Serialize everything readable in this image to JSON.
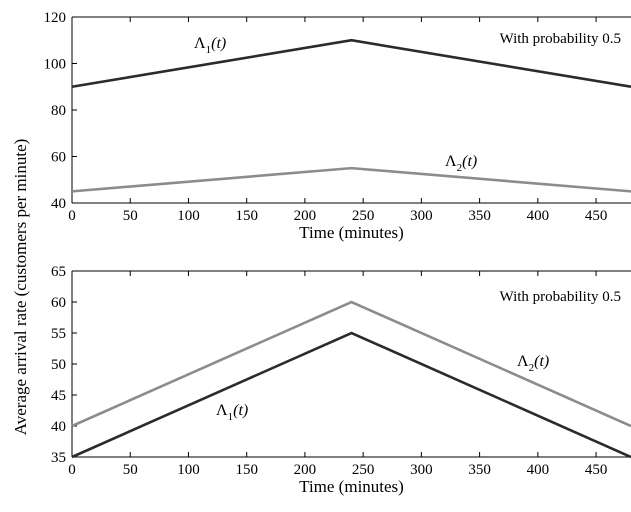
{
  "ylabel": "Average arrival rate (customers per minute)",
  "chart_data": [
    {
      "type": "line",
      "xlabel": "Time (minutes)",
      "annotation": "With probability 0.5",
      "xlim": [
        0,
        480
      ],
      "ylim": [
        40,
        120
      ],
      "xticks": [
        "0",
        "50",
        "100",
        "150",
        "200",
        "250",
        "300",
        "350",
        "400",
        "450"
      ],
      "yticks": [
        "40",
        "60",
        "80",
        "100",
        "120"
      ],
      "series": [
        {
          "name": "Λ1(t)",
          "label_main": "Λ",
          "label_sub": "1",
          "label_arg": "(t)",
          "color": "#2b2b2b",
          "x": [
            0,
            240,
            480
          ],
          "y": [
            90,
            110,
            90
          ]
        },
        {
          "name": "Λ2(t)",
          "label_main": "Λ",
          "label_sub": "2",
          "label_arg": "(t)",
          "color": "#8c8c8c",
          "x": [
            0,
            240,
            480
          ],
          "y": [
            45,
            55,
            45
          ]
        }
      ]
    },
    {
      "type": "line",
      "xlabel": "Time (minutes)",
      "annotation": "With probability 0.5",
      "xlim": [
        0,
        480
      ],
      "ylim": [
        35,
        65
      ],
      "xticks": [
        "0",
        "50",
        "100",
        "150",
        "200",
        "250",
        "300",
        "350",
        "400",
        "450"
      ],
      "yticks": [
        "35",
        "40",
        "45",
        "50",
        "55",
        "60",
        "65"
      ],
      "series": [
        {
          "name": "Λ1(t)",
          "label_main": "Λ",
          "label_sub": "1",
          "label_arg": "(t)",
          "color": "#2b2b2b",
          "x": [
            0,
            240,
            480
          ],
          "y": [
            35,
            55,
            35
          ]
        },
        {
          "name": "Λ2(t)",
          "label_main": "Λ",
          "label_sub": "2",
          "label_arg": "(t)",
          "color": "#8c8c8c",
          "x": [
            0,
            240,
            480
          ],
          "y": [
            40,
            60,
            40
          ]
        }
      ]
    }
  ]
}
